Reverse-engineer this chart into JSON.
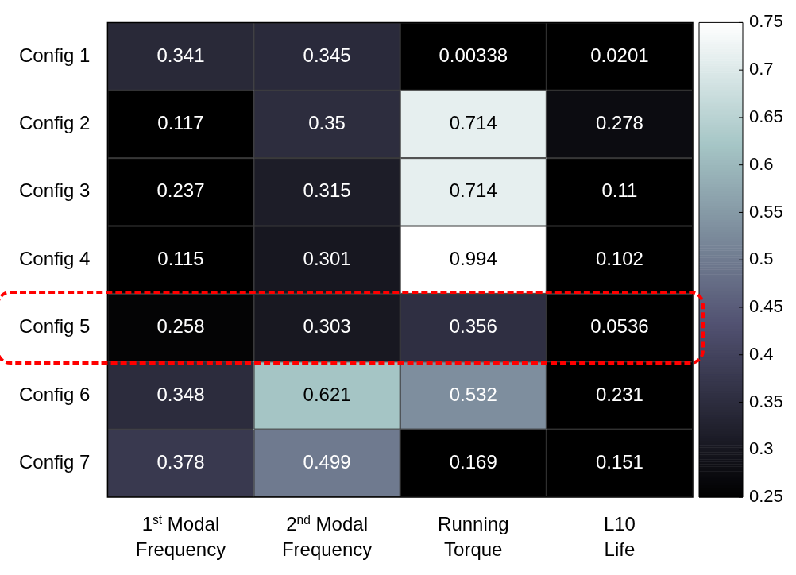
{
  "chart_data": {
    "type": "heatmap",
    "categories": [
      "1$^{st}$ Modal Frequency",
      "2$^{nd}$ Modal Frequency",
      "Running Torque",
      "L10 Life"
    ],
    "y_categories": [
      "Config 1",
      "Config 2",
      "Config 3",
      "Config 4",
      "Config 5",
      "Config 6",
      "Config 7"
    ],
    "cells": [
      [
        0.341,
        0.345,
        0.00338,
        0.0201
      ],
      [
        0.117,
        0.35,
        0.714,
        0.278
      ],
      [
        0.237,
        0.315,
        0.714,
        0.11
      ],
      [
        0.115,
        0.301,
        0.994,
        0.102
      ],
      [
        0.258,
        0.303,
        0.356,
        0.0536
      ],
      [
        0.348,
        0.621,
        0.532,
        0.231
      ],
      [
        0.378,
        0.499,
        0.169,
        0.151
      ]
    ],
    "data_labels": true,
    "clim": [
      0.25,
      0.75
    ],
    "cticks": [
      0.25,
      0.3,
      0.35,
      0.4,
      0.45,
      0.5,
      0.55,
      0.6,
      0.65,
      0.7,
      0.75
    ]
  }
}
